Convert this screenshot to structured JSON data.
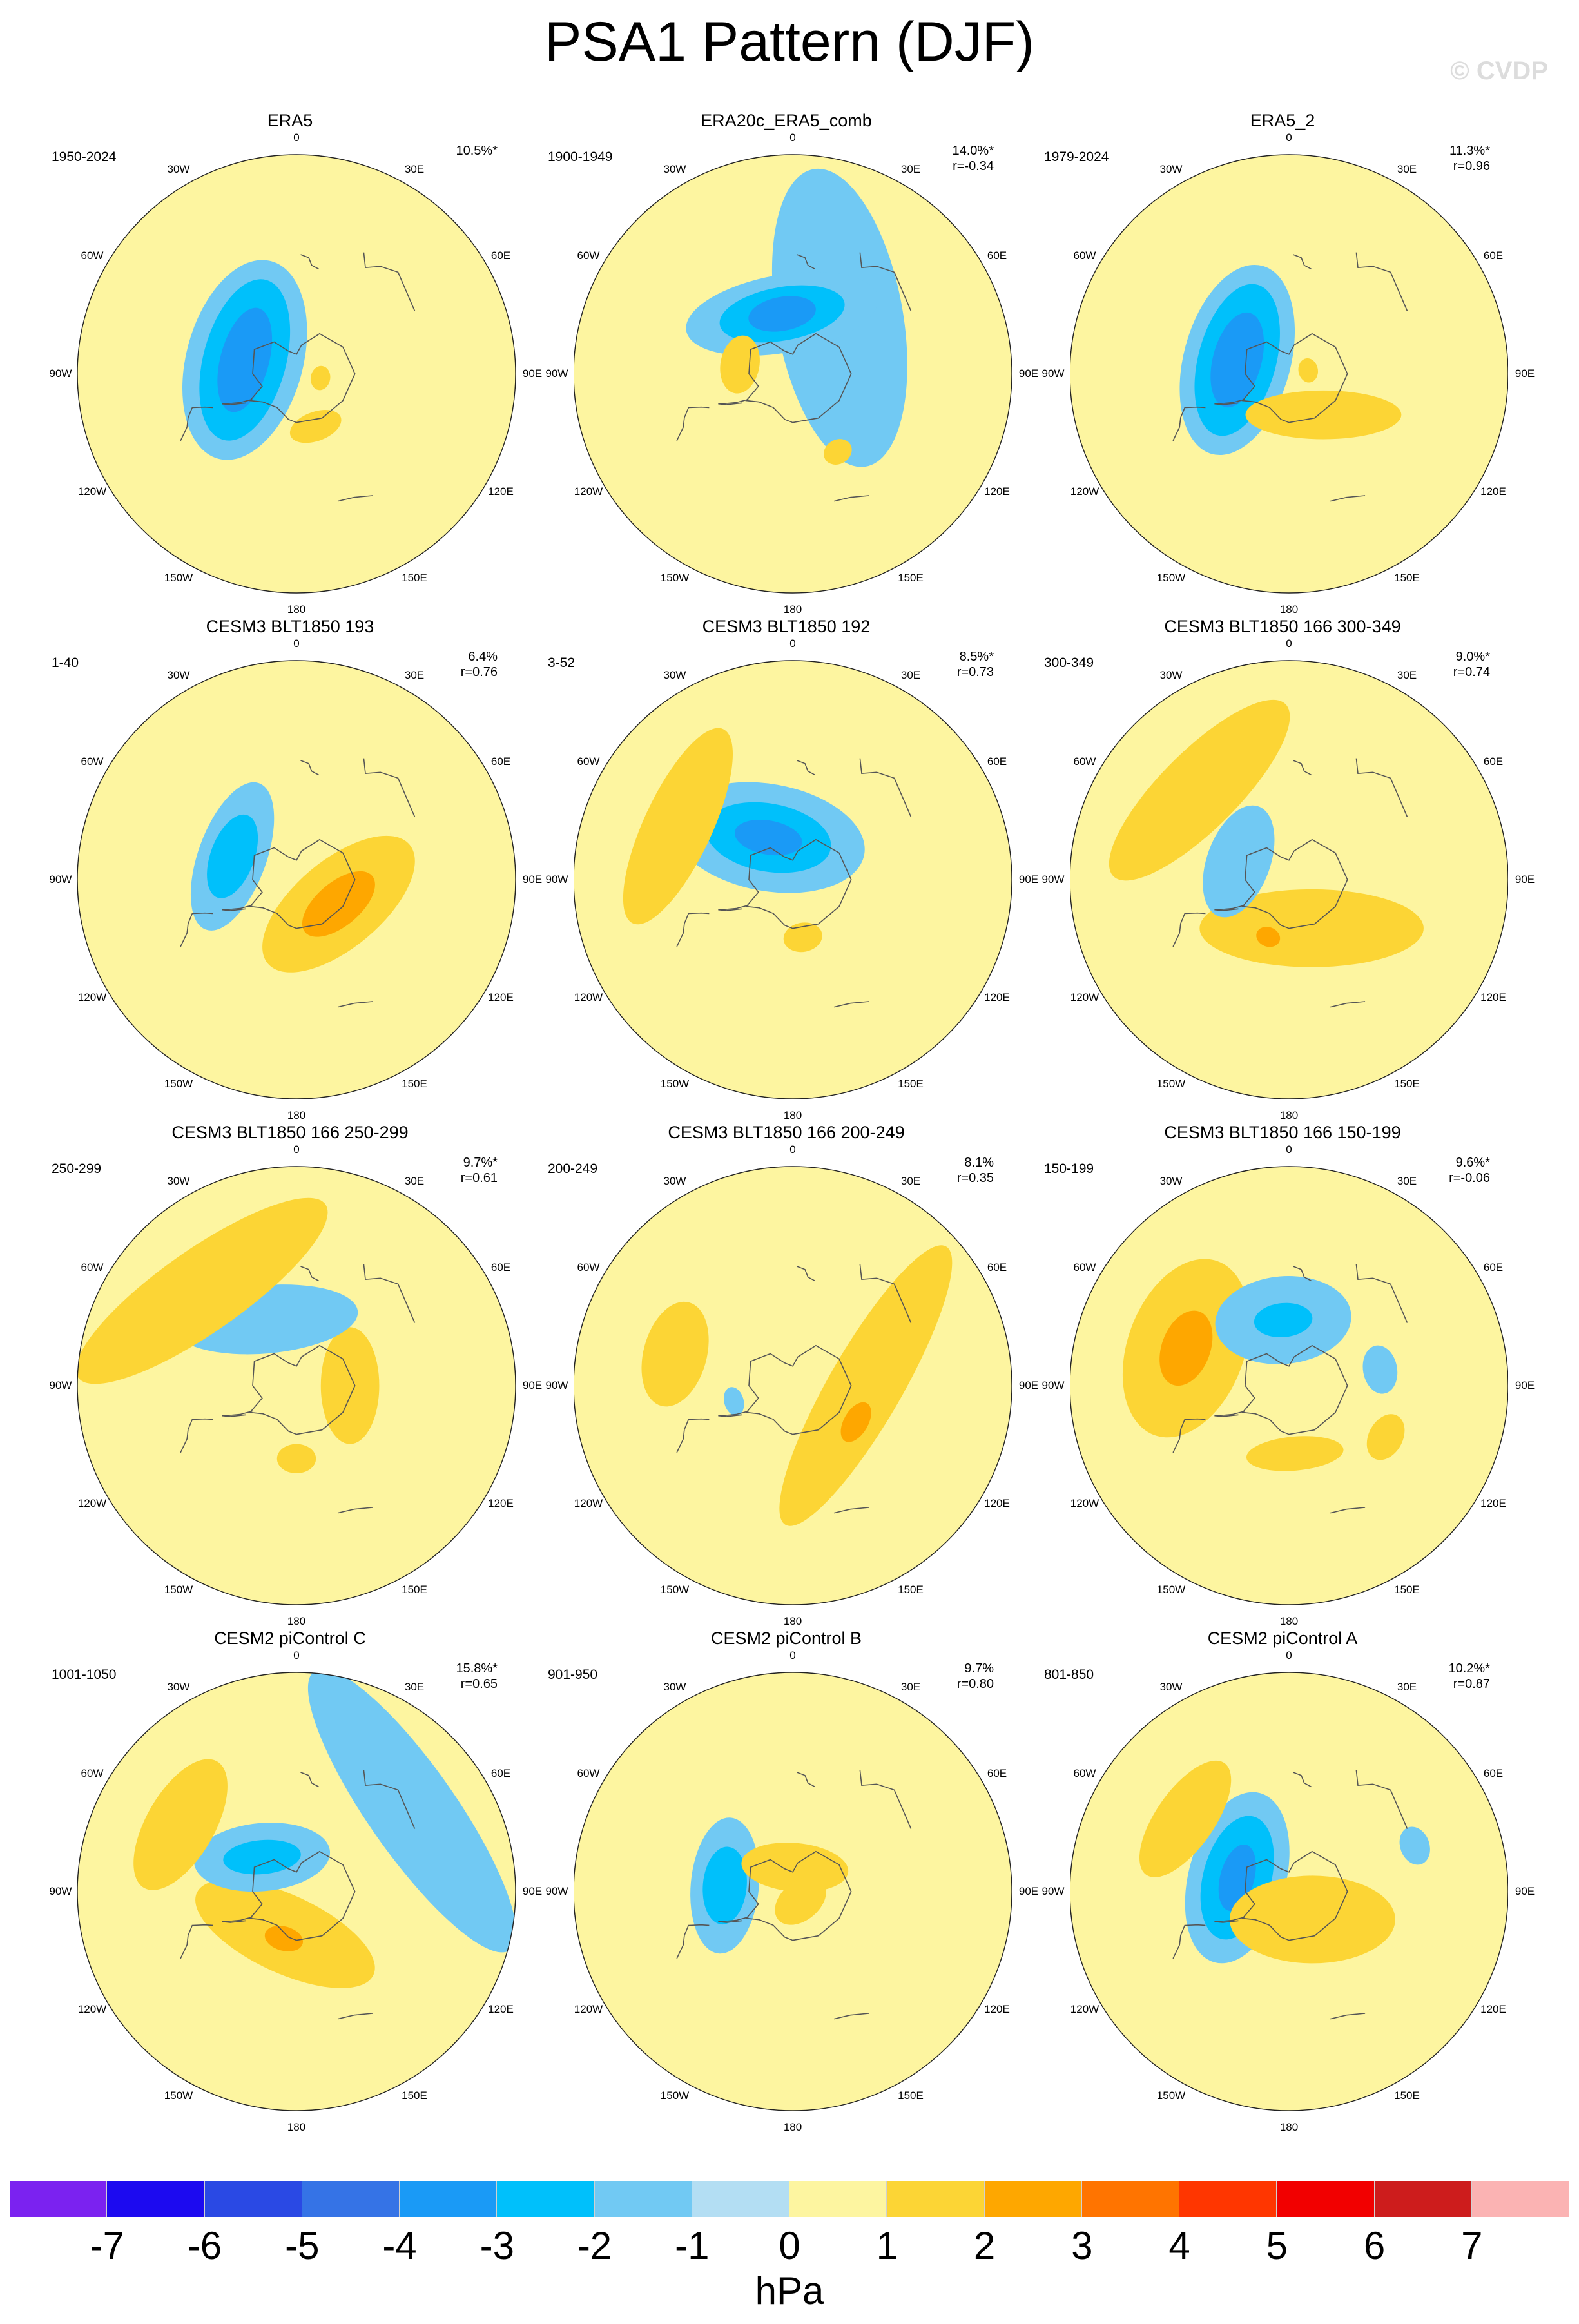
{
  "title": "PSA1 Pattern (DJF)",
  "copyright": "© CVDP",
  "colors": {
    "neg7": "#7b22f0",
    "neg6": "#1c0af0",
    "neg5": "#2a49e4",
    "neg4": "#3573e6",
    "neg3": "#1a9af6",
    "neg2": "#00c0fb",
    "neg1": "#71c9f3",
    "zero_neg": "#b3def3",
    "zero_pos": "#fdf5a0",
    "pos1": "#fcd535",
    "pos2": "#fea700",
    "pos3": "#ff7400",
    "pos4": "#ff3600",
    "pos5": "#f20000",
    "pos6": "#cd1c1c",
    "pos7": "#fbb3b3"
  },
  "colorbar": {
    "colors": [
      "#7b22f0",
      "#1c0af0",
      "#2a49e4",
      "#3573e6",
      "#1a9af6",
      "#00c0fb",
      "#71c9f3",
      "#b3def3",
      "#fdf5a0",
      "#fcd535",
      "#fea700",
      "#ff7400",
      "#ff3600",
      "#f20000",
      "#cd1c1c",
      "#fbb3b3"
    ],
    "labels": [
      "-7",
      "-6",
      "-5",
      "-4",
      "-3",
      "-2",
      "-1",
      "0",
      "1",
      "2",
      "3",
      "4",
      "5",
      "6",
      "7"
    ],
    "units": "hPa"
  },
  "lon_labels": {
    "l0": "0",
    "l30w": "30W",
    "l30e": "30E",
    "l60w": "60W",
    "l60e": "60E",
    "l90w": "90W",
    "l90e": "90E",
    "l120w": "120W",
    "l120e": "120E",
    "l150w": "150W",
    "l150e": "150E",
    "l180": "180"
  },
  "panels": [
    {
      "title": "ERA5",
      "period": "1950-2024",
      "pct": "10.5%*",
      "r": "",
      "anoms": [
        {
          "lon": 255,
          "colat": 22,
          "a": 42,
          "b": 24,
          "rot": 0,
          "level": "neg1"
        },
        {
          "lon": 255,
          "colat": 22,
          "a": 34,
          "b": 17,
          "rot": 0,
          "level": "neg2"
        },
        {
          "lon": 255,
          "colat": 22,
          "a": 22,
          "b": 10,
          "rot": 0,
          "level": "neg3"
        },
        {
          "lon": 20,
          "colat": 23,
          "a": 11,
          "b": 6,
          "rot": 0,
          "level": "pos1"
        },
        {
          "lon": 80,
          "colat": 10,
          "a": 5,
          "b": 4,
          "rot": 0,
          "level": "pos1"
        }
      ]
    },
    {
      "title": "ERA20c_ERA5_comb",
      "period": "1900-1949",
      "pct": "14.0%*",
      "r": "r=-0.34",
      "anoms": [
        {
          "lon": 140,
          "colat": 30,
          "a": 62,
          "b": 26,
          "rot": 40,
          "level": "neg1"
        },
        {
          "lon": 190,
          "colat": 25,
          "a": 40,
          "b": 16,
          "rot": 0,
          "level": "neg1"
        },
        {
          "lon": 190,
          "colat": 25,
          "a": 26,
          "b": 11,
          "rot": 0,
          "level": "neg2"
        },
        {
          "lon": 190,
          "colat": 25,
          "a": 14,
          "b": 7,
          "rot": 0,
          "level": "neg3"
        },
        {
          "lon": 260,
          "colat": 22,
          "a": 12,
          "b": 8,
          "rot": 0,
          "level": "pos1"
        },
        {
          "lon": 30,
          "colat": 37,
          "a": 6,
          "b": 5,
          "rot": 0,
          "level": "pos1"
        }
      ]
    },
    {
      "title": "ERA5_2",
      "period": "1979-2024",
      "pct": "11.3%*",
      "r": "r=0.96",
      "anoms": [
        {
          "lon": 255,
          "colat": 22,
          "a": 40,
          "b": 22,
          "rot": 0,
          "level": "neg1"
        },
        {
          "lon": 255,
          "colat": 22,
          "a": 32,
          "b": 16,
          "rot": 0,
          "level": "neg2"
        },
        {
          "lon": 255,
          "colat": 22,
          "a": 20,
          "b": 10,
          "rot": 0,
          "level": "neg3"
        },
        {
          "lon": 40,
          "colat": 22,
          "a": 32,
          "b": 10,
          "rot": 40,
          "level": "pos1"
        },
        {
          "lon": 100,
          "colat": 8,
          "a": 5,
          "b": 4,
          "rot": 0,
          "level": "pos1"
        }
      ]
    },
    {
      "title": "CESM3 BLT1850 193",
      "period": "1-40",
      "pct": "6.4%",
      "r": "r=0.76",
      "anoms": [
        {
          "lon": 60,
          "colat": 20,
          "a": 38,
          "b": 18,
          "rot": 20,
          "level": "pos1"
        },
        {
          "lon": 60,
          "colat": 20,
          "a": 18,
          "b": 9,
          "rot": 20,
          "level": "pos2"
        },
        {
          "lon": 250,
          "colat": 28,
          "a": 32,
          "b": 14,
          "rot": 0,
          "level": "neg1"
        },
        {
          "lon": 250,
          "colat": 28,
          "a": 18,
          "b": 9,
          "rot": 0,
          "level": "neg2"
        }
      ]
    },
    {
      "title": "CESM3 BLT1850 192",
      "period": "3-52",
      "pct": "8.5%*",
      "r": "r=0.73",
      "anoms": [
        {
          "lon": 210,
          "colat": 20,
          "a": 40,
          "b": 22,
          "rot": 40,
          "level": "neg1"
        },
        {
          "lon": 210,
          "colat": 20,
          "a": 26,
          "b": 14,
          "rot": 40,
          "level": "neg2"
        },
        {
          "lon": 210,
          "colat": 20,
          "a": 14,
          "b": 7,
          "rot": 40,
          "level": "neg3"
        },
        {
          "lon": 245,
          "colat": 52,
          "a": 44,
          "b": 14,
          "rot": 0,
          "level": "pos1"
        },
        {
          "lon": 10,
          "colat": 24,
          "a": 8,
          "b": 6,
          "rot": 0,
          "level": "pos1"
        }
      ]
    },
    {
      "title": "CESM3 BLT1850 166 300-349",
      "period": "300-349",
      "pct": "9.0%*",
      "r": "r=0.74",
      "anoms": [
        {
          "lon": 25,
          "colat": 22,
          "a": 46,
          "b": 16,
          "rot": 25,
          "level": "pos1"
        },
        {
          "lon": 340,
          "colat": 25,
          "a": 5,
          "b": 4,
          "rot": 0,
          "level": "pos2"
        },
        {
          "lon": 250,
          "colat": 22,
          "a": 24,
          "b": 13,
          "rot": 0,
          "level": "neg1"
        },
        {
          "lon": 225,
          "colat": 52,
          "a": 50,
          "b": 16,
          "rot": 0,
          "level": "pos1"
        }
      ]
    },
    {
      "title": "CESM3 BLT1850 166 250-299",
      "period": "250-299",
      "pct": "9.7%*",
      "r": "r=0.61",
      "anoms": [
        {
          "lon": 90,
          "colat": 22,
          "a": 24,
          "b": 12,
          "rot": 0,
          "level": "pos1"
        },
        {
          "lon": 0,
          "colat": 30,
          "a": 8,
          "b": 6,
          "rot": 0,
          "level": "pos1"
        },
        {
          "lon": 205,
          "colat": 30,
          "a": 38,
          "b": 14,
          "rot": 20,
          "level": "neg1"
        },
        {
          "lon": 225,
          "colat": 55,
          "a": 62,
          "b": 17,
          "rot": 10,
          "level": "pos1"
        }
      ]
    },
    {
      "title": "CESM3 BLT1850 166 200-249",
      "period": "200-249",
      "pct": "8.1%",
      "r": "r=0.35",
      "anoms": [
        {
          "lon": 90,
          "colat": 30,
          "a": 66,
          "b": 15,
          "rot": 30,
          "level": "pos1"
        },
        {
          "lon": 60,
          "colat": 30,
          "a": 9,
          "b": 5,
          "rot": 0,
          "level": "pos2"
        },
        {
          "lon": 255,
          "colat": 50,
          "a": 22,
          "b": 13,
          "rot": 0,
          "level": "pos1"
        },
        {
          "lon": 285,
          "colat": 25,
          "a": 6,
          "b": 4,
          "rot": 0,
          "level": "neg1"
        }
      ]
    },
    {
      "title": "CESM3 BLT1850 166 150-199",
      "period": "150-199",
      "pct": "9.6%*",
      "r": "r=-0.06",
      "anoms": [
        {
          "lon": 250,
          "colat": 45,
          "a": 38,
          "b": 24,
          "rot": 0,
          "level": "pos1"
        },
        {
          "lon": 250,
          "colat": 45,
          "a": 16,
          "b": 10,
          "rot": 0,
          "level": "pos2"
        },
        {
          "lon": 185,
          "colat": 27,
          "a": 28,
          "b": 18,
          "rot": 0,
          "level": "neg1"
        },
        {
          "lon": 185,
          "colat": 27,
          "a": 12,
          "b": 7,
          "rot": 0,
          "level": "neg2"
        },
        {
          "lon": 5,
          "colat": 28,
          "a": 20,
          "b": 7,
          "rot": 0,
          "level": "pos1"
        },
        {
          "lon": 62,
          "colat": 45,
          "a": 10,
          "b": 7,
          "rot": 0,
          "level": "pos1"
        },
        {
          "lon": 100,
          "colat": 38,
          "a": 10,
          "b": 7,
          "rot": 0,
          "level": "neg1"
        }
      ]
    },
    {
      "title": "CESM2 piControl C",
      "period": "1001-1050",
      "pct": "15.8%*",
      "r": "r=0.65",
      "anoms": [
        {
          "lon": 345,
          "colat": 18,
          "a": 40,
          "b": 16,
          "rot": 10,
          "level": "pos1"
        },
        {
          "lon": 345,
          "colat": 20,
          "a": 8,
          "b": 5,
          "rot": 0,
          "level": "pos2"
        },
        {
          "lon": 225,
          "colat": 20,
          "a": 28,
          "b": 14,
          "rot": 40,
          "level": "neg1"
        },
        {
          "lon": 225,
          "colat": 20,
          "a": 16,
          "b": 7,
          "rot": 40,
          "level": "neg2"
        },
        {
          "lon": 240,
          "colat": 55,
          "a": 30,
          "b": 14,
          "rot": 0,
          "level": "pos1"
        },
        {
          "lon": 125,
          "colat": 58,
          "a": 70,
          "b": 18,
          "rot": 0,
          "level": "neg1"
        }
      ]
    },
    {
      "title": "CESM2 piControl B",
      "period": "901-950",
      "pct": "9.7%",
      "r": "r=0.80",
      "anoms": [
        {
          "lon": 265,
          "colat": 28,
          "a": 28,
          "b": 14,
          "rot": 0,
          "level": "neg1"
        },
        {
          "lon": 265,
          "colat": 28,
          "a": 16,
          "b": 9,
          "rot": 0,
          "level": "neg2"
        },
        {
          "lon": 175,
          "colat": 10,
          "a": 22,
          "b": 10,
          "rot": 0,
          "level": "pos1"
        },
        {
          "lon": 40,
          "colat": 5,
          "a": 12,
          "b": 8,
          "rot": 0,
          "level": "pos1"
        }
      ]
    },
    {
      "title": "CESM2 piControl A",
      "period": "801-850",
      "pct": "10.2%*",
      "r": "r=0.87",
      "anoms": [
        {
          "lon": 255,
          "colat": 22,
          "a": 36,
          "b": 20,
          "rot": 0,
          "level": "neg1"
        },
        {
          "lon": 255,
          "colat": 22,
          "a": 26,
          "b": 14,
          "rot": 0,
          "level": "neg2"
        },
        {
          "lon": 255,
          "colat": 22,
          "a": 14,
          "b": 7,
          "rot": 0,
          "level": "neg3"
        },
        {
          "lon": 40,
          "colat": 15,
          "a": 34,
          "b": 18,
          "rot": 40,
          "level": "pos1"
        },
        {
          "lon": 235,
          "colat": 52,
          "a": 28,
          "b": 12,
          "rot": 0,
          "level": "pos1"
        },
        {
          "lon": 110,
          "colat": 55,
          "a": 8,
          "b": 6,
          "rot": 0,
          "level": "neg1"
        }
      ]
    }
  ]
}
